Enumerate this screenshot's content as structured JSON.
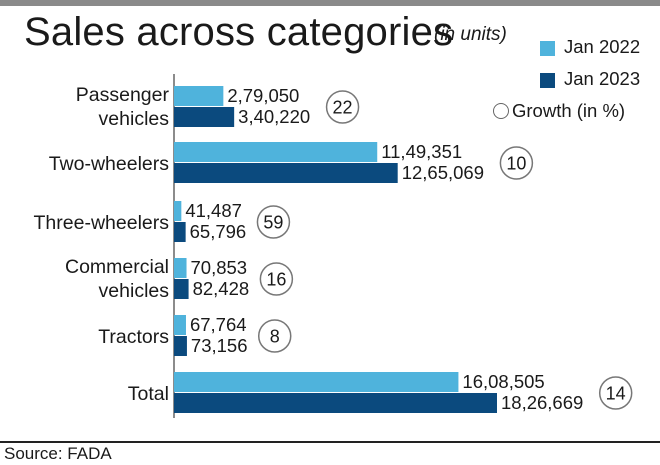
{
  "title": "Sales across categories",
  "units_note": "(in units)",
  "legend": {
    "jan2022": "Jan 2022",
    "jan2023": "Jan 2023",
    "growth": "Growth (in %)"
  },
  "colors": {
    "jan2022": "#4fb3dc",
    "jan2023": "#0b4a7e"
  },
  "source": "Source: FADA",
  "chart_data": {
    "type": "bar",
    "orientation": "horizontal",
    "title": "Sales across categories",
    "categories": [
      "Passenger vehicles",
      "Two-wheelers",
      "Three-wheelers",
      "Commercial vehicles",
      "Tractors",
      "Total"
    ],
    "category_lines": [
      [
        "Passenger",
        "vehicles"
      ],
      [
        "Two-wheelers"
      ],
      [
        "Three-wheelers"
      ],
      [
        "Commercial",
        "vehicles"
      ],
      [
        "Tractors"
      ],
      [
        "Total"
      ]
    ],
    "series": [
      {
        "name": "Jan 2022",
        "values": [
          279050,
          1149351,
          41487,
          70853,
          67764,
          1608505
        ],
        "labels": [
          "2,79,050",
          "11,49,351",
          "41,487",
          "70,853",
          "67,764",
          "16,08,505"
        ]
      },
      {
        "name": "Jan 2023",
        "values": [
          340220,
          1265069,
          65796,
          82428,
          73156,
          1826669
        ],
        "labels": [
          "3,40,220",
          "12,65,069",
          "65,796",
          "82,428",
          "73,156",
          "18,26,669"
        ]
      }
    ],
    "growth_pct": [
      "22",
      "10",
      "59",
      "16",
      "8",
      "14"
    ],
    "xlim": [
      0,
      1826669
    ],
    "grid": false,
    "legend_position": "top-right"
  }
}
